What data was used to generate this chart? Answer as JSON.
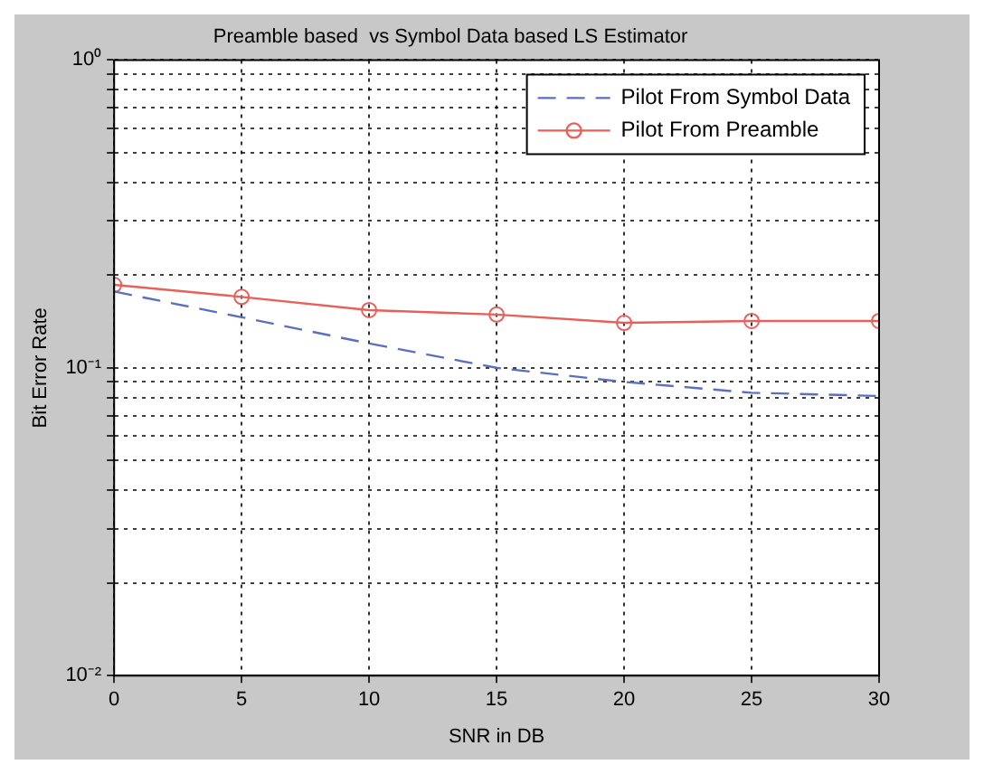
{
  "chart_data": {
    "type": "line",
    "title": "Preamble based  vs Symbol Data based LS Estimator",
    "xlabel": "SNR in DB",
    "ylabel": "Bit Error Rate",
    "x": [
      0,
      5,
      10,
      15,
      20,
      25,
      30
    ],
    "series": [
      {
        "name": "Pilot From Symbol Data",
        "color": "#5a6fc0",
        "line_style": "dashed",
        "marker": "none",
        "values": [
          0.177,
          0.146,
          0.12,
          0.1,
          0.09,
          0.083,
          0.081
        ]
      },
      {
        "name": "Pilot From Preamble",
        "color": "#e8605a",
        "line_style": "solid",
        "marker": "circle",
        "values": [
          0.186,
          0.17,
          0.154,
          0.149,
          0.14,
          0.142,
          0.142
        ]
      }
    ],
    "log": "y",
    "grid": true,
    "legend": "top right",
    "xlim": [
      0,
      30
    ],
    "xticks": [
      0,
      5,
      10,
      15,
      20,
      25,
      30
    ],
    "ylim": [
      0.01,
      1
    ],
    "yticks": [
      {
        "value": 0.01,
        "label": "10⁻²"
      },
      {
        "value": 0.02,
        "label": null
      },
      {
        "value": 0.03,
        "label": null
      },
      {
        "value": 0.04,
        "label": null
      },
      {
        "value": 0.05,
        "label": null
      },
      {
        "value": 0.06,
        "label": null
      },
      {
        "value": 0.07,
        "label": null
      },
      {
        "value": 0.08,
        "label": null
      },
      {
        "value": 0.09,
        "label": null
      },
      {
        "value": 0.1,
        "label": "10⁻¹"
      },
      {
        "value": 0.2,
        "label": null
      },
      {
        "value": 0.3,
        "label": null
      },
      {
        "value": 0.4,
        "label": null
      },
      {
        "value": 0.5,
        "label": null
      },
      {
        "value": 0.6,
        "label": null
      },
      {
        "value": 0.7,
        "label": null
      },
      {
        "value": 0.8,
        "label": null
      },
      {
        "value": 0.9,
        "label": null
      },
      {
        "value": 1,
        "label": "10⁰"
      }
    ]
  }
}
